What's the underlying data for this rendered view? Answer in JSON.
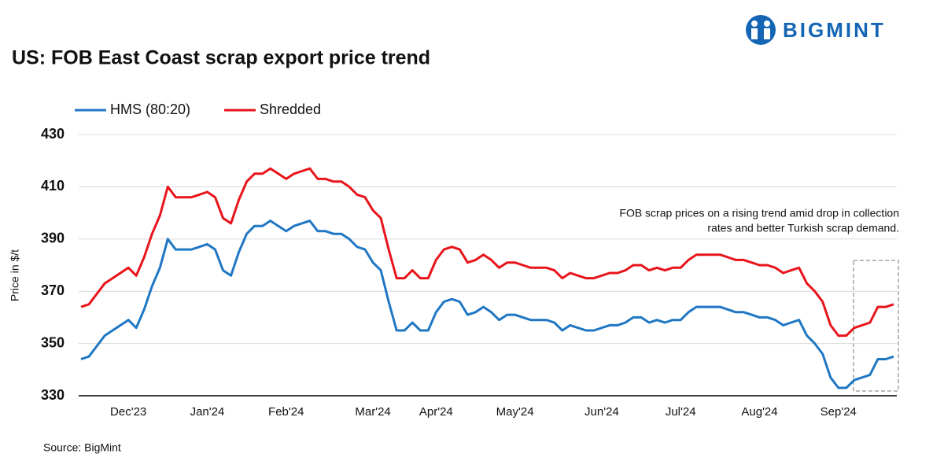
{
  "chart_data": {
    "type": "line",
    "title": "US: FOB East Coast scrap export price trend",
    "logo": "BIGMINT",
    "ylabel": "Price in $/t",
    "source": "Source: BigMint",
    "annotation": [
      "FOB scrap prices on a rising trend amid drop in collection",
      "rates and better Turkish scrap demand."
    ],
    "categories": [
      null,
      null,
      null,
      null,
      null,
      null,
      "Dec'23",
      null,
      null,
      null,
      null,
      null,
      null,
      null,
      null,
      null,
      "Jan'24",
      null,
      null,
      null,
      null,
      null,
      null,
      null,
      null,
      null,
      "Feb'24",
      null,
      null,
      null,
      null,
      null,
      null,
      null,
      null,
      null,
      null,
      "Mar'24",
      null,
      null,
      null,
      null,
      null,
      null,
      null,
      "Apr'24",
      null,
      null,
      null,
      null,
      null,
      null,
      null,
      null,
      null,
      "May'24",
      null,
      null,
      null,
      null,
      null,
      null,
      null,
      null,
      null,
      null,
      "Jun'24",
      null,
      null,
      null,
      null,
      null,
      null,
      null,
      null,
      null,
      "Jul'24",
      null,
      null,
      null,
      null,
      null,
      null,
      null,
      null,
      null,
      "Aug'24",
      null,
      null,
      null,
      null,
      null,
      null,
      null,
      null,
      null,
      "Sep'24",
      null,
      null,
      null,
      null,
      null,
      null,
      null
    ],
    "series": [
      {
        "name": "HMS (80:20)",
        "color": "#1f77c4",
        "values": [
          344,
          345,
          349,
          353,
          355,
          357,
          359,
          356,
          363,
          372,
          379,
          390,
          386,
          386,
          386,
          387,
          388,
          386,
          378,
          376,
          385,
          392,
          395,
          395,
          397,
          395,
          393,
          395,
          396,
          397,
          393,
          393,
          392,
          392,
          390,
          387,
          386,
          381,
          378,
          366,
          355,
          355,
          358,
          355,
          355,
          362,
          366,
          367,
          366,
          361,
          362,
          364,
          362,
          359,
          361,
          361,
          360,
          359,
          359,
          359,
          358,
          355,
          357,
          356,
          355,
          355,
          356,
          357,
          357,
          358,
          360,
          360,
          358,
          359,
          358,
          359,
          359,
          362,
          364,
          364,
          364,
          364,
          363,
          362,
          362,
          361,
          360,
          360,
          359,
          357,
          358,
          359,
          353,
          350,
          346,
          337,
          333,
          333,
          336,
          337,
          338,
          344,
          344,
          345
        ]
      },
      {
        "name": "Shredded",
        "color": "#e8141b",
        "values": [
          364,
          365,
          369,
          373,
          375,
          377,
          379,
          376,
          383,
          392,
          399,
          410,
          406,
          406,
          406,
          407,
          408,
          406,
          398,
          396,
          405,
          412,
          415,
          415,
          417,
          415,
          413,
          415,
          416,
          417,
          413,
          413,
          412,
          412,
          410,
          407,
          406,
          401,
          398,
          386,
          375,
          375,
          378,
          375,
          375,
          382,
          386,
          387,
          386,
          381,
          382,
          384,
          382,
          379,
          381,
          381,
          380,
          379,
          379,
          379,
          378,
          375,
          377,
          376,
          375,
          375,
          376,
          377,
          377,
          378,
          380,
          380,
          378,
          379,
          378,
          379,
          379,
          382,
          384,
          384,
          384,
          384,
          383,
          382,
          382,
          381,
          380,
          380,
          379,
          377,
          378,
          379,
          373,
          370,
          366,
          357,
          353,
          353,
          356,
          357,
          358,
          364,
          364,
          365
        ]
      }
    ],
    "ylim": [
      330,
      430
    ],
    "yticks": [
      330,
      350,
      370,
      390,
      410,
      430
    ],
    "grid": true
  }
}
